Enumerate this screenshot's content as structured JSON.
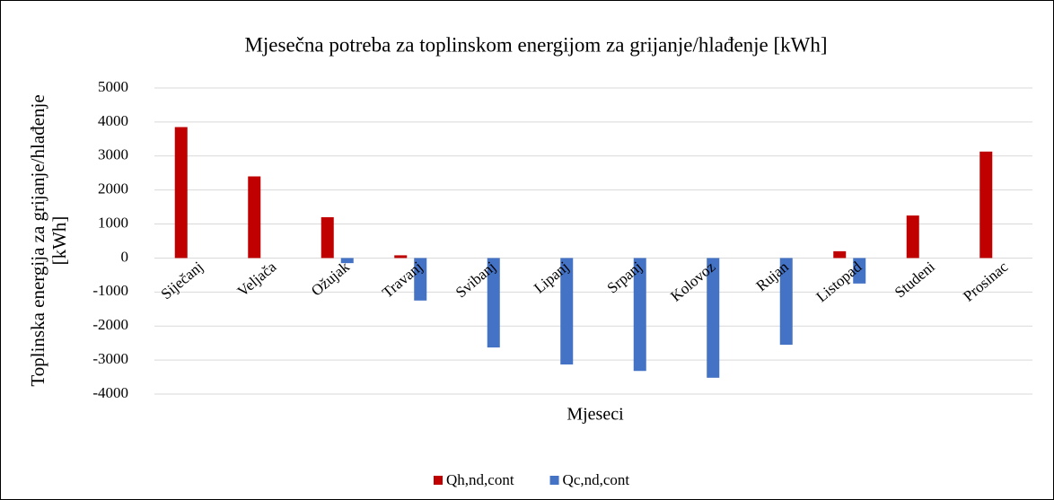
{
  "chart_data": {
    "type": "bar",
    "title": "Mjesečna potreba za toplinskom energijom za grijanje/hlađenje [kWh]",
    "ylabel": [
      "Toplinska energija za grijanje/hlađenje",
      "[kWh]"
    ],
    "xlabel": "Mjeseci",
    "categories": [
      "Siječanj",
      "Veljača",
      "Ožujak",
      "Travanj",
      "Svibanj",
      "Lipanj",
      "Srpanj",
      "Kolovoz",
      "Rujan",
      "Listopad",
      "Studeni",
      "Prosinac"
    ],
    "series": [
      {
        "name": "Qh,nd,cont",
        "color": "#c00000",
        "values": [
          3850,
          2400,
          1200,
          80,
          0,
          0,
          0,
          0,
          0,
          200,
          1250,
          3130
        ]
      },
      {
        "name": "Qc,nd,cont",
        "color": "#4472c4",
        "values": [
          0,
          0,
          -150,
          -1250,
          -2630,
          -3130,
          -3320,
          -3520,
          -2550,
          -750,
          0,
          0
        ]
      }
    ],
    "ylim": [
      -4000,
      5000
    ],
    "yticks": [
      -4000,
      -3000,
      -2000,
      -1000,
      0,
      1000,
      2000,
      3000,
      4000,
      5000
    ],
    "grid": true,
    "legend": "bottom"
  }
}
